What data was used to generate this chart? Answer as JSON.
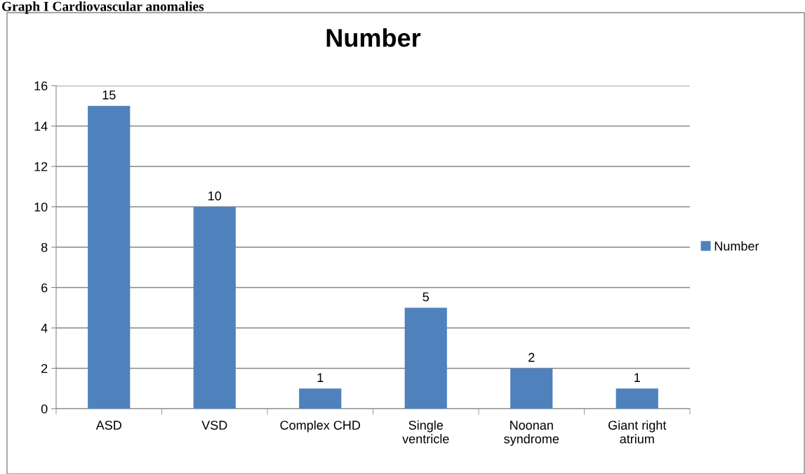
{
  "chart_data": {
    "type": "bar",
    "title": "Number",
    "annotations": [
      "Graph I Cardiovascular anomalies"
    ],
    "categories": [
      "ASD",
      "VSD",
      "Complex CHD",
      "Single\nventricle",
      "Noonan\nsyndrome",
      "Giant right\natrium"
    ],
    "series": [
      {
        "name": "Number",
        "color": "#4f81bd",
        "values": [
          15,
          10,
          1,
          5,
          2,
          1
        ]
      }
    ],
    "ylim": [
      0,
      16
    ],
    "yticks": [
      0,
      2,
      4,
      6,
      8,
      10,
      12,
      14,
      16
    ],
    "grid": "y",
    "legend": "right",
    "data_labels": true
  }
}
